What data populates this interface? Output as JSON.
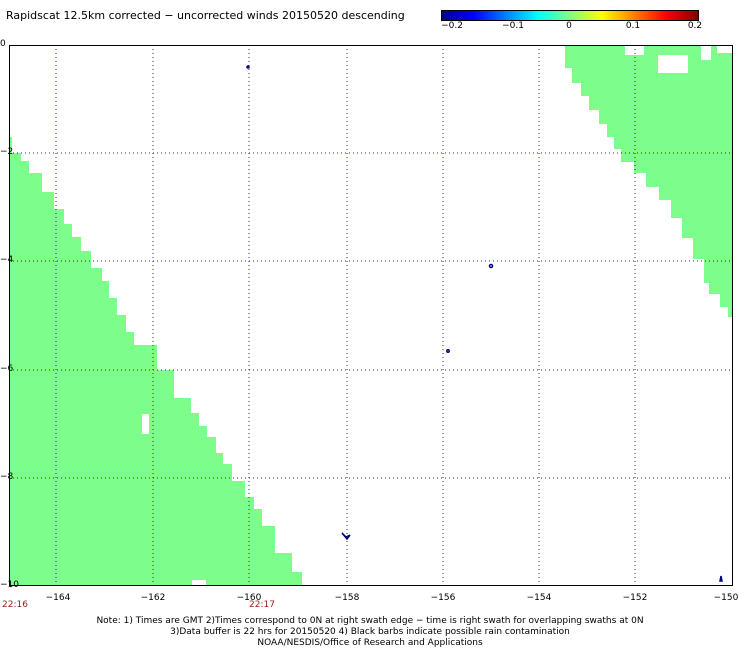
{
  "title": "Rapidscat 12.5km corrected − uncorrected winds 20150520 descending",
  "colorbar": {
    "ticks": [
      "−0.2",
      "−0.1",
      "0",
      "0.1",
      "0.2"
    ],
    "colors": [
      "#00008f",
      "#0000ff",
      "#0080ff",
      "#00ffff",
      "#80ff80",
      "#ffff00",
      "#ff8000",
      "#ff0000",
      "#800000"
    ]
  },
  "map": {
    "lon_range": [
      -165,
      -150
    ],
    "lat_range": [
      -10,
      0
    ],
    "x_ticks": [
      "−164",
      "−162",
      "−160",
      "−158",
      "−156",
      "−154",
      "−152",
      "−150"
    ],
    "y_ticks": [
      "0",
      "−2",
      "−4",
      "−6",
      "−8",
      "−10"
    ],
    "swath_color": "#7dfe8c",
    "grid": "dotted blue",
    "time_labels": [
      {
        "text": "22:16",
        "lon": -165
      },
      {
        "text": "22:17",
        "lon": -160
      }
    ]
  },
  "notes": {
    "line1": "Note: 1) Times are GMT 2)Times correspond to 0N at right swath edge − time is right swath for overlapping swaths at 0N",
    "line2": "3)Data buffer is 22 hrs for 20150520 4) Black barbs indicate possible rain contamination",
    "line3": "NOAA/NESDIS/Office of Research and Applications"
  }
}
